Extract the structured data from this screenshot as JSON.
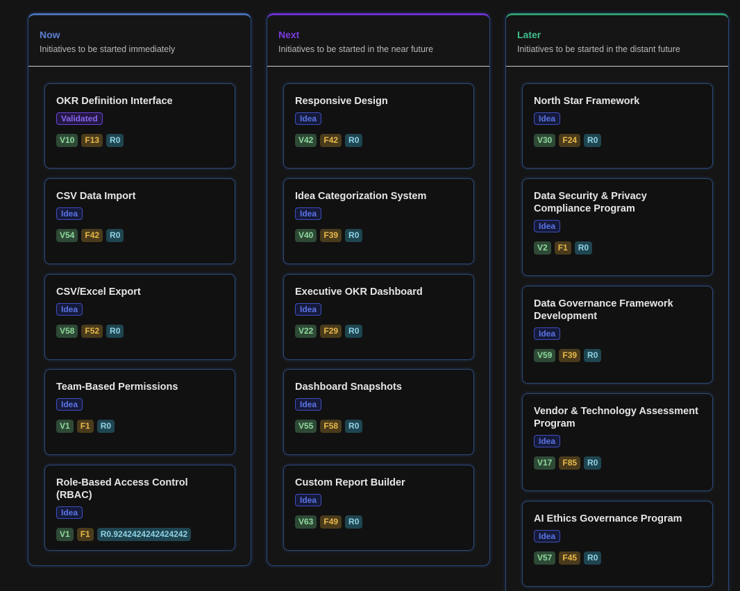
{
  "columns": [
    {
      "title": "Now",
      "subtitle": "Initiatives to be started immediately",
      "cards": [
        {
          "title": "OKR Definition Interface",
          "status": "Validated",
          "v": "V10",
          "f": "F13",
          "r": "R0"
        },
        {
          "title": "CSV Data Import",
          "status": "Idea",
          "v": "V54",
          "f": "F42",
          "r": "R0"
        },
        {
          "title": "CSV/Excel Export",
          "status": "Idea",
          "v": "V58",
          "f": "F52",
          "r": "R0"
        },
        {
          "title": "Team-Based Permissions",
          "status": "Idea",
          "v": "V1",
          "f": "F1",
          "r": "R0"
        },
        {
          "title": "Role-Based Access Control (RBAC)",
          "status": "Idea",
          "v": "V1",
          "f": "F1",
          "r": "R0.9242424242424242"
        }
      ]
    },
    {
      "title": "Next",
      "subtitle": "Initiatives to be started in the near future",
      "cards": [
        {
          "title": "Responsive Design",
          "status": "Idea",
          "v": "V42",
          "f": "F42",
          "r": "R0"
        },
        {
          "title": "Idea Categorization System",
          "status": "Idea",
          "v": "V40",
          "f": "F39",
          "r": "R0"
        },
        {
          "title": "Executive OKR Dashboard",
          "status": "Idea",
          "v": "V22",
          "f": "F29",
          "r": "R0"
        },
        {
          "title": "Dashboard Snapshots",
          "status": "Idea",
          "v": "V55",
          "f": "F58",
          "r": "R0"
        },
        {
          "title": "Custom Report Builder",
          "status": "Idea",
          "v": "V63",
          "f": "F49",
          "r": "R0"
        }
      ]
    },
    {
      "title": "Later",
      "subtitle": "Initiatives to be started in the distant future",
      "cards": [
        {
          "title": "North Star Framework",
          "status": "Idea",
          "v": "V30",
          "f": "F24",
          "r": "R0"
        },
        {
          "title": "Data Security & Privacy Compliance Program",
          "status": "Idea",
          "v": "V2",
          "f": "F1",
          "r": "R0"
        },
        {
          "title": "Data Governance Framework Development",
          "status": "Idea",
          "v": "V59",
          "f": "F39",
          "r": "R0"
        },
        {
          "title": "Vendor & Technology Assessment Program",
          "status": "Idea",
          "v": "V17",
          "f": "F85",
          "r": "R0"
        },
        {
          "title": "AI Ethics Governance Program",
          "status": "Idea",
          "v": "V57",
          "f": "F45",
          "r": "R0"
        }
      ]
    }
  ]
}
